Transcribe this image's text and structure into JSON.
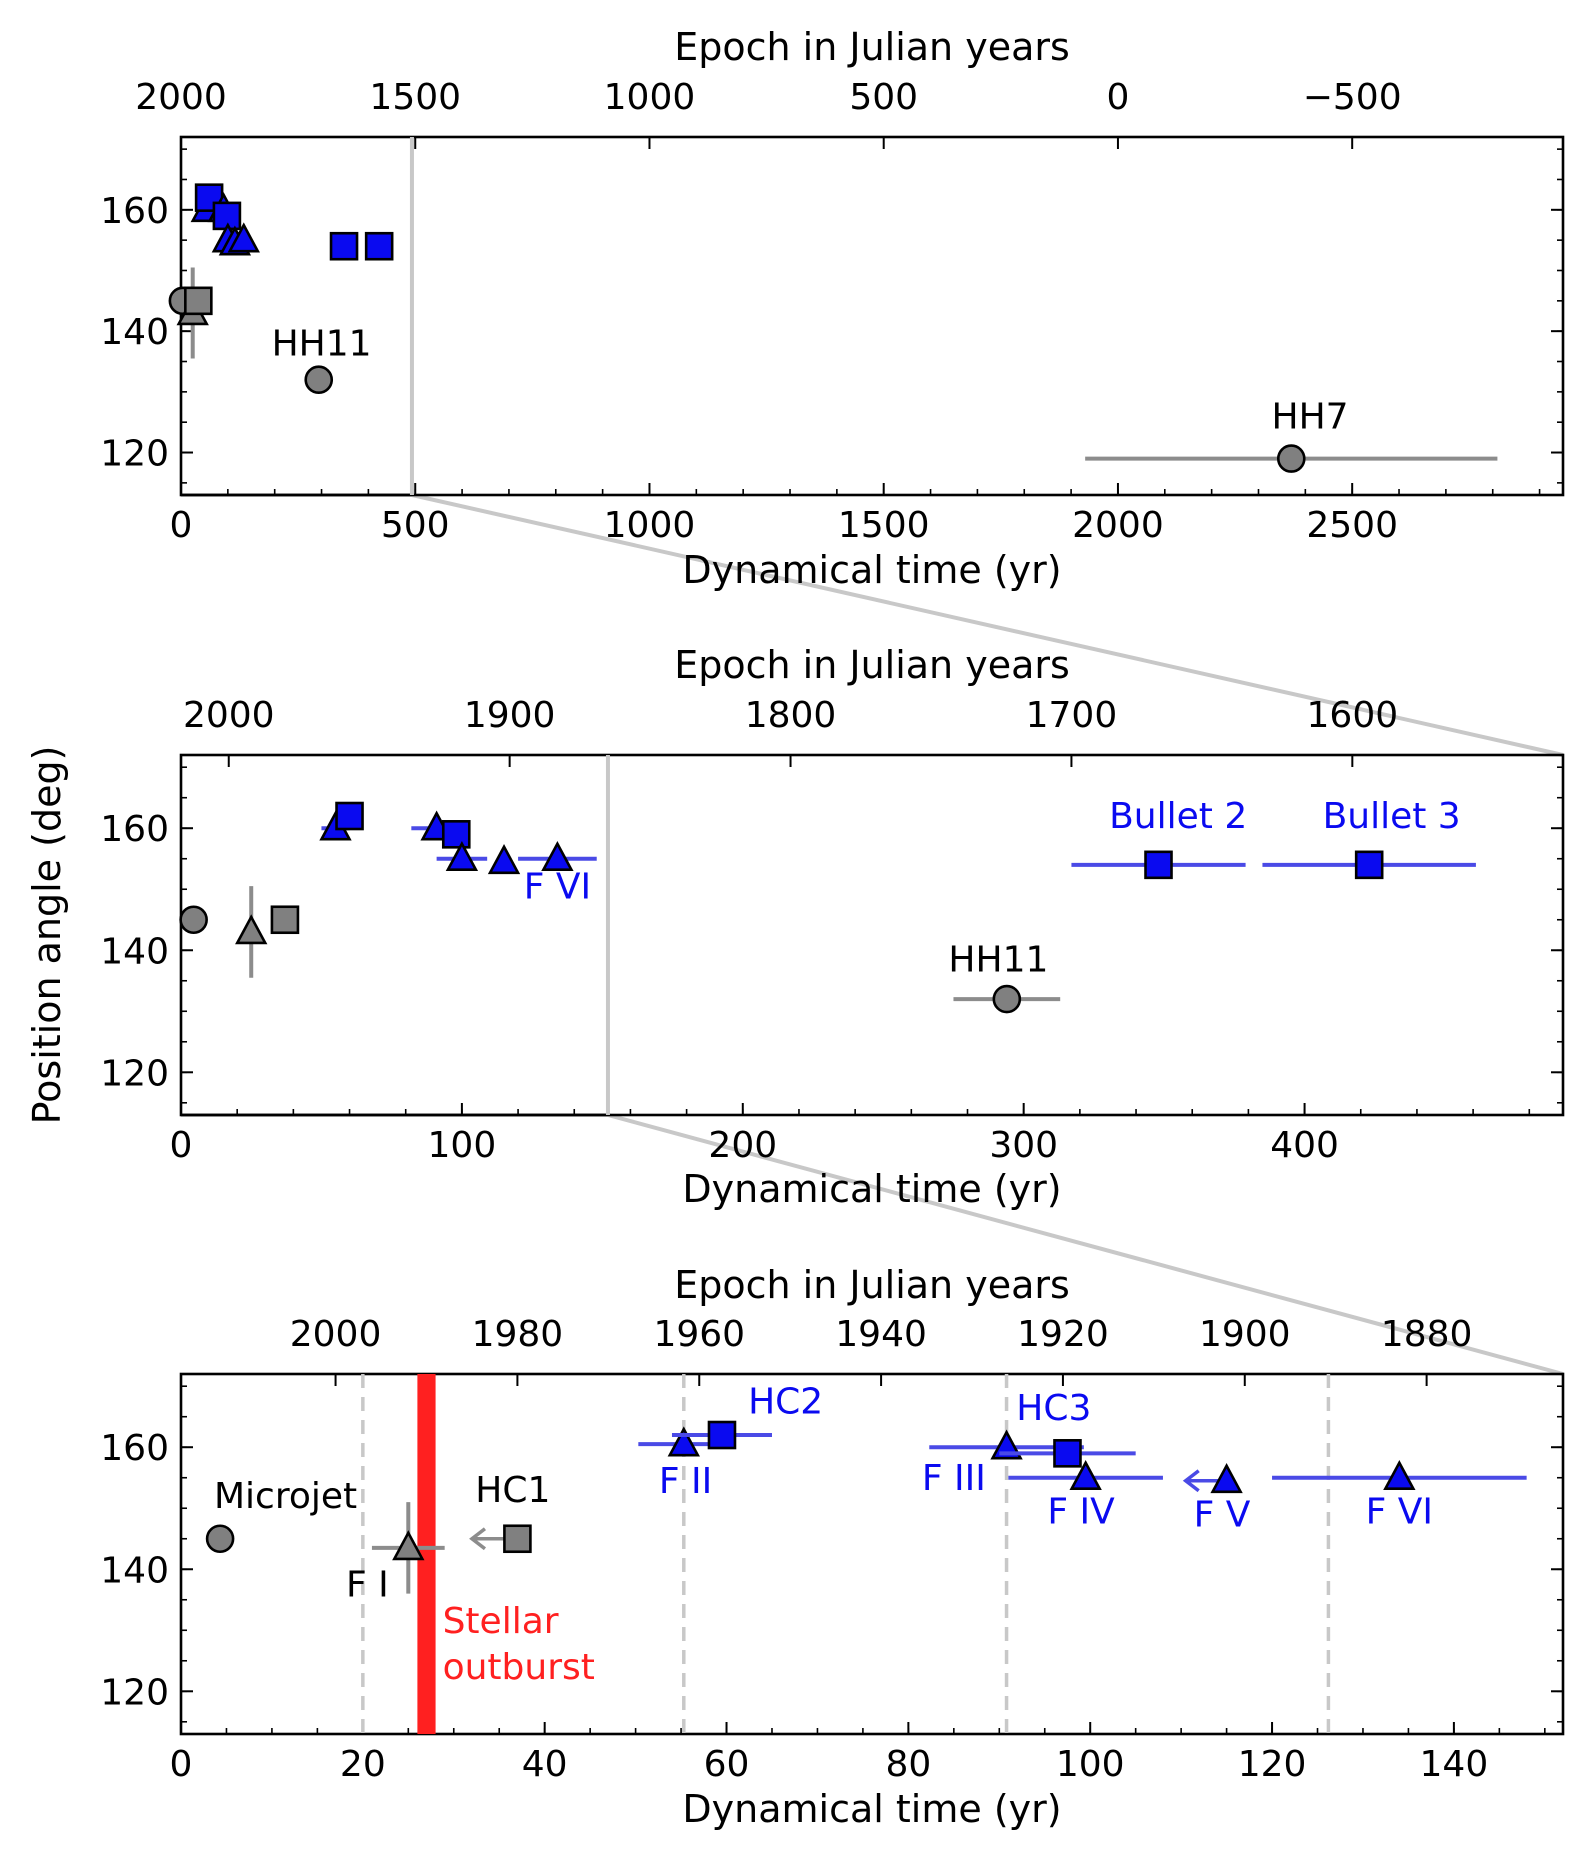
{
  "figure": {
    "ylabel": "Position angle (deg)",
    "colors": {
      "blue": "#0a0af0",
      "gray": "#808080",
      "red": "#ff2020",
      "sep": "#c8c8c8",
      "bluebar": "#4a4ae6"
    }
  },
  "chart_data": [
    {
      "type": "scatter",
      "panel": "top",
      "xlabel": "Dynamical time (yr)",
      "top_xlabel": "Epoch in Julian years",
      "xlim": [
        0,
        2950
      ],
      "ylim": [
        113,
        172
      ],
      "x_ticks": [
        0,
        500,
        1000,
        1500,
        2000,
        2500
      ],
      "x_tick_labels": [
        "0",
        "500",
        "1000",
        "1500",
        "2000",
        "2500"
      ],
      "y_ticks": [
        120,
        140,
        160
      ],
      "y_tick_labels": [
        "120",
        "140",
        "160"
      ],
      "top_ticks": [
        {
          "t": 0,
          "label": "2000"
        },
        {
          "t": 500,
          "label": "1500"
        },
        {
          "t": 1000,
          "label": "1000"
        },
        {
          "t": 1500,
          "label": "500"
        },
        {
          "t": 2000,
          "label": "0"
        },
        {
          "t": 2500,
          "label": "−500"
        }
      ],
      "vline": 493,
      "points": [
        {
          "x": 4,
          "y": 145,
          "m": "circle",
          "c": "gray"
        },
        {
          "x": 25,
          "y": 143,
          "m": "triangle",
          "c": "gray",
          "yerr": 7.5
        },
        {
          "x": 37,
          "y": 145,
          "m": "square",
          "c": "gray"
        },
        {
          "x": 55,
          "y": 160,
          "m": "triangle",
          "c": "blue"
        },
        {
          "x": 60,
          "y": 162,
          "m": "square",
          "c": "blue"
        },
        {
          "x": 91,
          "y": 160,
          "m": "triangle",
          "c": "blue"
        },
        {
          "x": 98,
          "y": 159,
          "m": "square",
          "c": "blue"
        },
        {
          "x": 100,
          "y": 155,
          "m": "triangle",
          "c": "blue"
        },
        {
          "x": 115,
          "y": 154.5,
          "m": "triangle",
          "c": "blue"
        },
        {
          "x": 134,
          "y": 155,
          "m": "triangle",
          "c": "blue"
        },
        {
          "x": 294,
          "y": 132,
          "m": "circle",
          "c": "gray"
        },
        {
          "x": 348,
          "y": 154,
          "m": "square",
          "c": "blue"
        },
        {
          "x": 423,
          "y": 154,
          "m": "square",
          "c": "blue"
        },
        {
          "x": 2370,
          "y": 119,
          "m": "circle",
          "c": "gray",
          "xerr": [
            440,
            440
          ]
        }
      ],
      "annotations": [
        {
          "text": "HH11",
          "x": 300,
          "y": 136,
          "c": "black"
        },
        {
          "text": "HH7",
          "x": 2410,
          "y": 124,
          "c": "black"
        }
      ]
    },
    {
      "type": "scatter",
      "panel": "middle",
      "xlabel": "Dynamical time (yr)",
      "top_xlabel": "Epoch in Julian years",
      "xlim": [
        0,
        492
      ],
      "ylim": [
        113,
        172
      ],
      "x_ticks": [
        0,
        100,
        200,
        300,
        400
      ],
      "x_tick_labels": [
        "0",
        "100",
        "200",
        "300",
        "400"
      ],
      "y_ticks": [
        120,
        140,
        160
      ],
      "y_tick_labels": [
        "120",
        "140",
        "160"
      ],
      "top_ticks": [
        {
          "t": 17,
          "label": "2000"
        },
        {
          "t": 117,
          "label": "1900"
        },
        {
          "t": 217,
          "label": "1800"
        },
        {
          "t": 317,
          "label": "1700"
        },
        {
          "t": 417,
          "label": "1600"
        }
      ],
      "vline": 152,
      "points": [
        {
          "x": 4.5,
          "y": 145,
          "m": "circle",
          "c": "gray"
        },
        {
          "x": 25,
          "y": 143,
          "m": "triangle",
          "c": "gray",
          "yerr": 7.5
        },
        {
          "x": 37,
          "y": 145,
          "m": "square",
          "c": "gray"
        },
        {
          "x": 55,
          "y": 160,
          "m": "triangle",
          "c": "blue",
          "xerr": [
            5,
            5
          ]
        },
        {
          "x": 60,
          "y": 162,
          "m": "square",
          "c": "blue"
        },
        {
          "x": 91,
          "y": 160,
          "m": "triangle",
          "c": "blue",
          "xerr": [
            9,
            9
          ]
        },
        {
          "x": 98,
          "y": 159,
          "m": "square",
          "c": "blue"
        },
        {
          "x": 100,
          "y": 155,
          "m": "triangle",
          "c": "blue",
          "xerr": [
            9,
            9
          ]
        },
        {
          "x": 115,
          "y": 154.5,
          "m": "triangle",
          "c": "blue"
        },
        {
          "x": 134,
          "y": 155,
          "m": "triangle",
          "c": "blue",
          "xerr": [
            14,
            14
          ]
        },
        {
          "x": 294,
          "y": 132,
          "m": "circle",
          "c": "gray",
          "xerr": [
            19,
            19
          ]
        },
        {
          "x": 348,
          "y": 154,
          "m": "square",
          "c": "blue",
          "xerr": [
            31,
            31
          ]
        },
        {
          "x": 423,
          "y": 154,
          "m": "square",
          "c": "blue",
          "xerr": [
            38,
            38
          ]
        }
      ],
      "annotations": [
        {
          "text": "Bullet 2",
          "x": 355,
          "y": 160,
          "c": "blue"
        },
        {
          "text": "Bullet 3",
          "x": 431,
          "y": 160,
          "c": "blue"
        },
        {
          "text": "F VI",
          "x": 134,
          "y": 148.5,
          "c": "blue"
        },
        {
          "text": "HH11",
          "x": 291,
          "y": 136.5,
          "c": "black"
        }
      ]
    },
    {
      "type": "scatter",
      "panel": "bottom",
      "xlabel": "Dynamical time (yr)",
      "top_xlabel": "Epoch in Julian years",
      "xlim": [
        0,
        152
      ],
      "ylim": [
        113,
        172
      ],
      "x_ticks": [
        0,
        20,
        40,
        60,
        80,
        100,
        120,
        140
      ],
      "x_tick_labels": [
        "0",
        "20",
        "40",
        "60",
        "80",
        "100",
        "120",
        "140"
      ],
      "y_ticks": [
        120,
        140,
        160
      ],
      "y_tick_labels": [
        "120",
        "140",
        "160"
      ],
      "top_ticks": [
        {
          "t": 17,
          "label": "2000"
        },
        {
          "t": 37,
          "label": "1980"
        },
        {
          "t": 57,
          "label": "1960"
        },
        {
          "t": 77,
          "label": "1940"
        },
        {
          "t": 97,
          "label": "1920"
        },
        {
          "t": 117,
          "label": "1900"
        },
        {
          "t": 137,
          "label": "1880"
        }
      ],
      "dashed_lines": [
        20,
        55.3,
        90.8,
        126.2
      ],
      "outburst": {
        "x0": 26,
        "x1": 28
      },
      "points": [
        {
          "x": 4.3,
          "y": 145,
          "m": "circle",
          "c": "gray"
        },
        {
          "x": 25,
          "y": 143.5,
          "m": "triangle",
          "c": "gray",
          "xerr": [
            4,
            4
          ],
          "yerr": 7.5
        },
        {
          "x": 37,
          "y": 145,
          "m": "square",
          "c": "gray",
          "arrow_left": 5
        },
        {
          "x": 55.3,
          "y": 160.5,
          "m": "triangle",
          "c": "blue",
          "xerr": [
            5,
            5
          ]
        },
        {
          "x": 59.5,
          "y": 162,
          "m": "square",
          "c": "blue",
          "xerr": [
            5.5,
            5.5
          ]
        },
        {
          "x": 90.8,
          "y": 160,
          "m": "triangle",
          "c": "blue",
          "xerr": [
            8.5,
            8.5
          ]
        },
        {
          "x": 97.5,
          "y": 159,
          "m": "square",
          "c": "blue",
          "xerr": [
            7.5,
            7.5
          ]
        },
        {
          "x": 99.5,
          "y": 155,
          "m": "triangle",
          "c": "blue",
          "xerr": [
            8.5,
            8.5
          ]
        },
        {
          "x": 115,
          "y": 154.5,
          "m": "triangle",
          "c": "blue",
          "arrow_left": 4.5
        },
        {
          "x": 134,
          "y": 155,
          "m": "triangle",
          "c": "blue",
          "xerr": [
            14,
            14
          ]
        }
      ],
      "annotations": [
        {
          "text": "Microjet",
          "x": 11.5,
          "y": 150,
          "c": "black"
        },
        {
          "text": "F I",
          "x": 20.5,
          "y": 135.5,
          "c": "black"
        },
        {
          "text": "HC1",
          "x": 36.5,
          "y": 151,
          "c": "black"
        },
        {
          "text": "HC2",
          "x": 66.5,
          "y": 165.5,
          "c": "blue"
        },
        {
          "text": "F II",
          "x": 55.5,
          "y": 152.5,
          "c": "blue"
        },
        {
          "text": "HC3",
          "x": 96,
          "y": 164.5,
          "c": "blue"
        },
        {
          "text": "F III",
          "x": 85,
          "y": 153,
          "c": "blue"
        },
        {
          "text": "F IV",
          "x": 99,
          "y": 147.5,
          "c": "blue"
        },
        {
          "text": "F V",
          "x": 114.5,
          "y": 147,
          "c": "blue"
        },
        {
          "text": "F VI",
          "x": 134,
          "y": 147.5,
          "c": "blue"
        }
      ],
      "outburst_label": [
        "Stellar",
        "outburst"
      ]
    }
  ]
}
